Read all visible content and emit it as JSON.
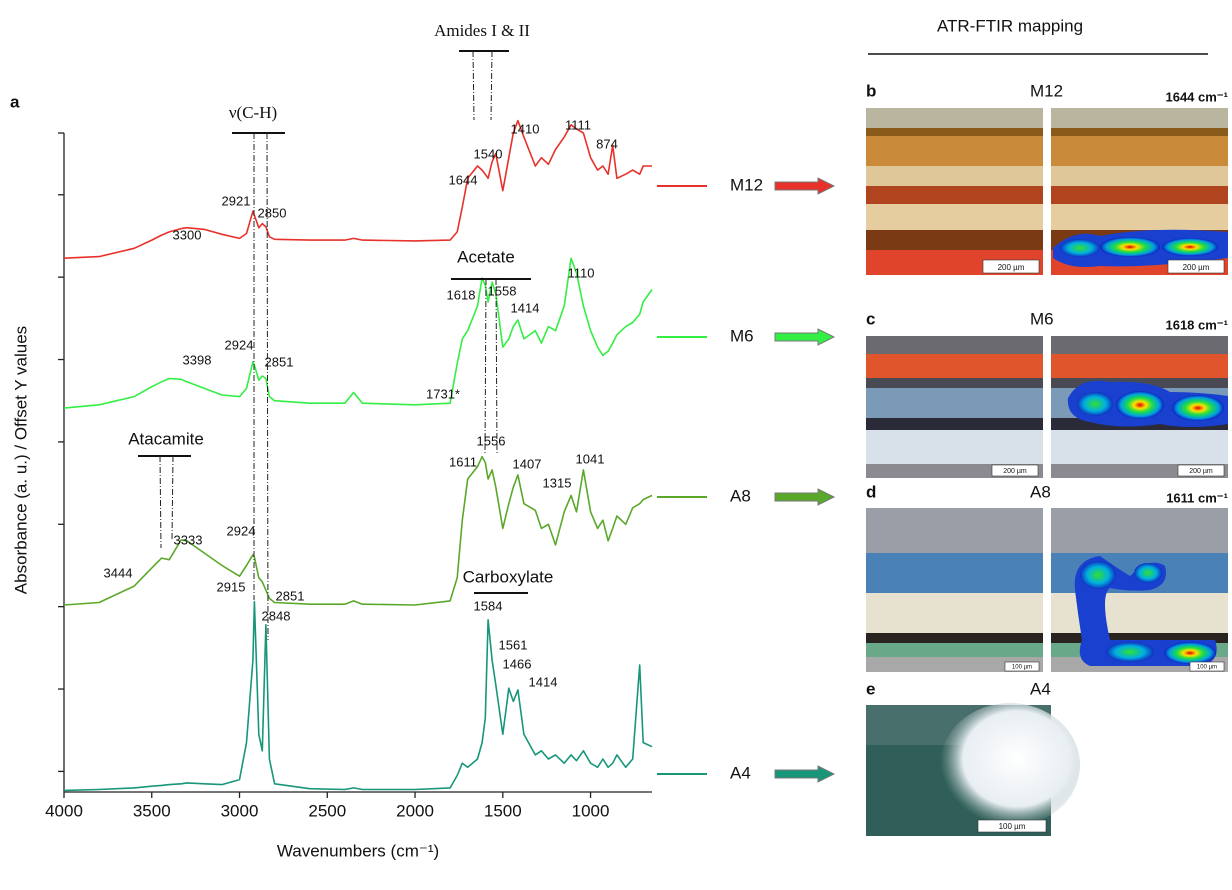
{
  "chart_data": {
    "type": "line",
    "panel_label": "a",
    "x_label": "Wavenumbers (cm⁻¹)",
    "y_label": "Absorbance (a. u.) / Offset Y values",
    "xlim": [
      4000,
      650
    ],
    "xticks": [
      4000,
      3500,
      3000,
      2500,
      2000,
      1500,
      1000
    ],
    "ylim": [
      0,
      8
    ],
    "yticks": [
      0.25,
      1.25,
      2.25,
      3.25,
      4.25,
      5.25,
      6.25,
      7.25,
      8
    ],
    "x": [
      4000,
      3800,
      3600,
      3500,
      3444,
      3400,
      3333,
      3300,
      3200,
      3100,
      3000,
      2960,
      2924,
      2915,
      2890,
      2870,
      2850,
      2830,
      2800,
      2600,
      2400,
      2350,
      2300,
      2000,
      1800,
      1760,
      1731,
      1700,
      1644,
      1618,
      1600,
      1584,
      1561,
      1540,
      1500,
      1466,
      1440,
      1414,
      1380,
      1315,
      1280,
      1240,
      1200,
      1150,
      1111,
      1080,
      1041,
      1000,
      960,
      930,
      900,
      874,
      850,
      800,
      760,
      720,
      700,
      650
    ],
    "series": [
      {
        "name": "M12",
        "color": "#e8312a",
        "values": [
          6.48,
          6.5,
          6.6,
          6.7,
          6.76,
          6.8,
          6.84,
          6.85,
          6.83,
          6.77,
          6.72,
          6.78,
          7.05,
          7.0,
          6.85,
          6.9,
          6.86,
          6.74,
          6.71,
          6.7,
          6.7,
          6.72,
          6.7,
          6.69,
          6.7,
          6.8,
          7.1,
          7.45,
          7.6,
          7.55,
          7.5,
          7.45,
          7.65,
          7.75,
          7.3,
          7.7,
          8.0,
          8.15,
          7.95,
          7.6,
          7.7,
          7.62,
          7.8,
          7.95,
          8.1,
          8.05,
          8.0,
          7.7,
          7.55,
          7.6,
          7.5,
          7.85,
          7.45,
          7.5,
          7.55,
          7.5,
          7.6,
          7.6
        ]
      },
      {
        "name": "M6",
        "color": "#33ee44",
        "values": [
          4.66,
          4.7,
          4.8,
          4.92,
          4.98,
          5.02,
          5.01,
          4.98,
          4.9,
          4.82,
          4.8,
          4.9,
          5.22,
          5.18,
          5.0,
          5.05,
          5.02,
          4.8,
          4.75,
          4.72,
          4.72,
          4.85,
          4.72,
          4.7,
          4.72,
          5.2,
          5.5,
          5.6,
          5.9,
          6.24,
          6.15,
          5.95,
          6.19,
          6.05,
          5.4,
          5.5,
          5.65,
          5.73,
          5.5,
          5.6,
          5.45,
          5.65,
          5.6,
          5.9,
          6.48,
          6.3,
          5.9,
          5.6,
          5.4,
          5.3,
          5.35,
          5.45,
          5.55,
          5.65,
          5.7,
          5.8,
          5.95,
          6.1
        ]
      },
      {
        "name": "A8",
        "color": "#5aa82a",
        "values": [
          2.27,
          2.3,
          2.5,
          2.72,
          2.84,
          2.82,
          3.06,
          3.05,
          2.9,
          2.75,
          2.62,
          2.75,
          2.88,
          2.85,
          2.6,
          2.55,
          2.45,
          2.35,
          2.3,
          2.28,
          2.28,
          2.32,
          2.28,
          2.27,
          2.32,
          2.6,
          3.3,
          3.8,
          3.95,
          4.07,
          4.0,
          3.8,
          3.91,
          3.7,
          3.2,
          3.5,
          3.7,
          3.85,
          3.5,
          3.42,
          3.2,
          3.25,
          3.0,
          3.4,
          3.6,
          3.4,
          3.91,
          3.4,
          3.2,
          3.3,
          3.05,
          3.2,
          3.35,
          3.25,
          3.45,
          3.5,
          3.55,
          3.6
        ]
      },
      {
        "name": "A4",
        "color": "#17967a",
        "values": [
          0.02,
          0.03,
          0.05,
          0.07,
          0.08,
          0.09,
          0.1,
          0.11,
          0.1,
          0.09,
          0.15,
          0.6,
          1.6,
          2.31,
          0.7,
          0.5,
          2.03,
          0.4,
          0.1,
          0.04,
          0.03,
          0.05,
          0.03,
          0.03,
          0.05,
          0.2,
          0.35,
          0.3,
          0.4,
          0.6,
          0.9,
          2.09,
          1.6,
          1.3,
          0.7,
          1.26,
          1.1,
          1.24,
          0.7,
          0.45,
          0.5,
          0.4,
          0.45,
          0.35,
          0.45,
          0.38,
          0.5,
          0.35,
          0.3,
          0.4,
          0.3,
          0.35,
          0.45,
          0.3,
          0.4,
          1.54,
          0.6,
          0.55
        ]
      }
    ],
    "annotations": [
      "3300",
      "2921",
      "2850",
      "1644",
      "1540",
      "1410",
      "1111",
      "874",
      "3398",
      "2924",
      "2851",
      "1731*",
      "1618",
      "1558",
      "1414",
      "1110",
      "3444",
      "3333",
      "2924",
      "2851",
      "1611",
      "1556",
      "1407",
      "1315",
      "1041",
      "2915",
      "2848",
      "1584",
      "1561",
      "1466",
      "1414"
    ],
    "band_labels": [
      "Amides I & II",
      "ν(C-H)",
      "Acetate",
      "Atacamite",
      "Carboxylate"
    ]
  },
  "mapping": {
    "title": "ATR-FTIR mapping",
    "panels": [
      {
        "letter": "b",
        "sample": "M12",
        "band": "1644 cm⁻¹",
        "scale": "200 µm",
        "scale2": "200 µm"
      },
      {
        "letter": "c",
        "sample": "M6",
        "band": "1618 cm⁻¹",
        "scale": "200 µm",
        "scale2": "200 µm"
      },
      {
        "letter": "d",
        "sample": "A8",
        "band": "1611 cm⁻¹",
        "scale": "100 µm",
        "scale2": "100 µm"
      },
      {
        "letter": "e",
        "sample": "A4",
        "scale": "100 µm"
      }
    ]
  }
}
